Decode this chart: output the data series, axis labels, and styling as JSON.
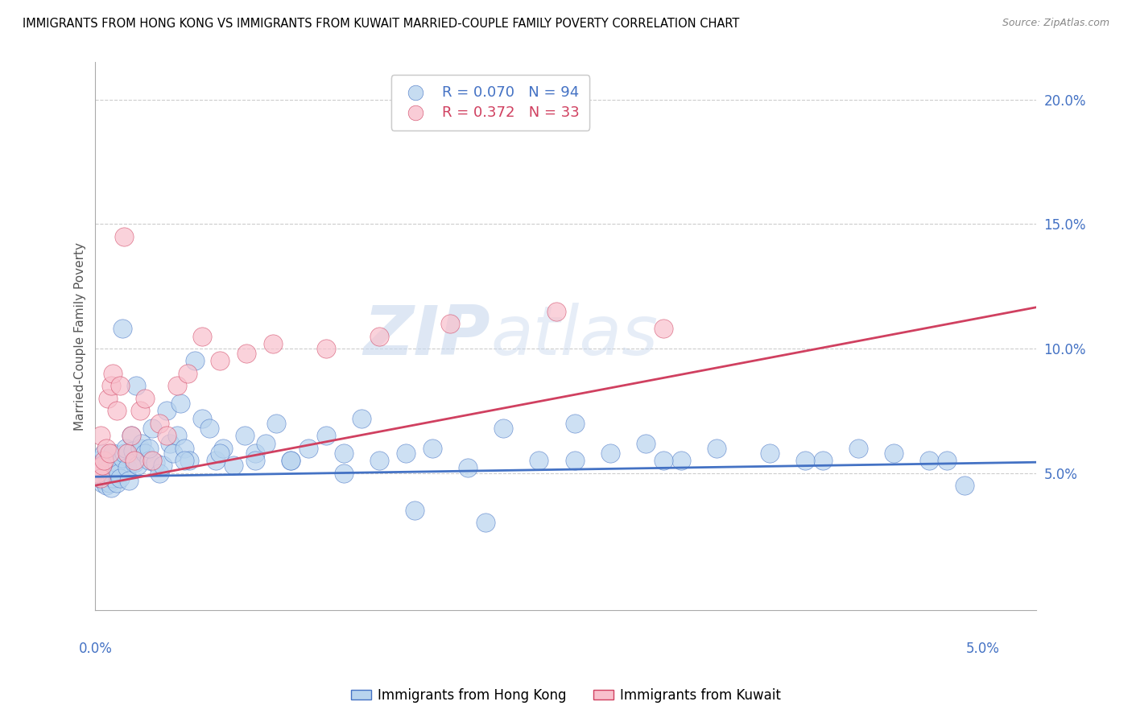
{
  "title": "IMMIGRANTS FROM HONG KONG VS IMMIGRANTS FROM KUWAIT MARRIED-COUPLE FAMILY POVERTY CORRELATION CHART",
  "source": "Source: ZipAtlas.com",
  "ylabel": "Married-Couple Family Poverty",
  "hk_R": 0.07,
  "hk_N": 94,
  "kw_R": 0.372,
  "kw_N": 33,
  "hk_color": "#b8d4ee",
  "kw_color": "#f8c0cc",
  "hk_line_color": "#4472c4",
  "kw_line_color": "#d04060",
  "xlim_min": 0.0,
  "xlim_max": 5.3,
  "ylim_min": -0.5,
  "ylim_max": 21.5,
  "ytick_vals": [
    5.0,
    10.0,
    15.0,
    20.0
  ],
  "ytick_labels": [
    "5.0%",
    "10.0%",
    "15.0%",
    "20.0%"
  ],
  "hk_slope": 0.11,
  "hk_intercept": 4.85,
  "kw_slope": 1.35,
  "kw_intercept": 4.5,
  "hk_x": [
    0.01,
    0.02,
    0.02,
    0.03,
    0.03,
    0.04,
    0.04,
    0.05,
    0.05,
    0.06,
    0.06,
    0.07,
    0.07,
    0.08,
    0.08,
    0.09,
    0.09,
    0.1,
    0.1,
    0.11,
    0.12,
    0.12,
    0.13,
    0.14,
    0.15,
    0.15,
    0.16,
    0.17,
    0.18,
    0.19,
    0.2,
    0.21,
    0.22,
    0.23,
    0.24,
    0.25,
    0.26,
    0.28,
    0.3,
    0.32,
    0.34,
    0.36,
    0.38,
    0.4,
    0.42,
    0.44,
    0.46,
    0.48,
    0.5,
    0.53,
    0.56,
    0.6,
    0.64,
    0.68,
    0.72,
    0.78,
    0.84,
    0.9,
    0.96,
    1.02,
    1.1,
    1.2,
    1.3,
    1.4,
    1.5,
    1.6,
    1.75,
    1.9,
    2.1,
    2.3,
    2.5,
    2.7,
    2.9,
    3.1,
    3.3,
    3.5,
    3.8,
    4.1,
    4.3,
    4.5,
    4.7,
    4.9,
    0.3,
    0.5,
    0.7,
    0.9,
    1.1,
    1.4,
    1.8,
    2.2,
    2.7,
    3.2,
    4.0,
    4.8
  ],
  "hk_y": [
    5.2,
    4.8,
    5.5,
    5.3,
    4.9,
    5.0,
    4.6,
    5.8,
    4.7,
    5.1,
    4.5,
    4.8,
    5.4,
    5.2,
    4.6,
    5.0,
    4.4,
    5.8,
    4.8,
    5.2,
    5.4,
    4.6,
    5.0,
    4.8,
    10.8,
    5.6,
    5.8,
    6.0,
    5.2,
    4.7,
    6.5,
    5.9,
    5.4,
    8.5,
    5.3,
    6.0,
    6.2,
    5.8,
    5.5,
    6.8,
    5.4,
    5.0,
    5.3,
    7.5,
    6.2,
    5.8,
    6.5,
    7.8,
    6.0,
    5.5,
    9.5,
    7.2,
    6.8,
    5.5,
    6.0,
    5.3,
    6.5,
    5.8,
    6.2,
    7.0,
    5.5,
    6.0,
    6.5,
    5.8,
    7.2,
    5.5,
    5.8,
    6.0,
    5.2,
    6.8,
    5.5,
    7.0,
    5.8,
    6.2,
    5.5,
    6.0,
    5.8,
    5.5,
    6.0,
    5.8,
    5.5,
    4.5,
    6.0,
    5.5,
    5.8,
    5.5,
    5.5,
    5.0,
    3.5,
    3.0,
    5.5,
    5.5,
    5.5,
    5.5
  ],
  "kw_x": [
    0.01,
    0.02,
    0.03,
    0.03,
    0.04,
    0.05,
    0.06,
    0.07,
    0.08,
    0.09,
    0.1,
    0.12,
    0.14,
    0.16,
    0.18,
    0.2,
    0.22,
    0.25,
    0.28,
    0.32,
    0.36,
    0.4,
    0.46,
    0.52,
    0.6,
    0.7,
    0.85,
    1.0,
    1.3,
    1.6,
    2.0,
    2.6,
    3.2
  ],
  "kw_y": [
    5.0,
    5.2,
    4.8,
    6.5,
    5.3,
    5.5,
    6.0,
    8.0,
    5.8,
    8.5,
    9.0,
    7.5,
    8.5,
    14.5,
    5.8,
    6.5,
    5.5,
    7.5,
    8.0,
    5.5,
    7.0,
    6.5,
    8.5,
    9.0,
    10.5,
    9.5,
    9.8,
    10.2,
    10.0,
    10.5,
    11.0,
    11.5,
    10.8
  ]
}
